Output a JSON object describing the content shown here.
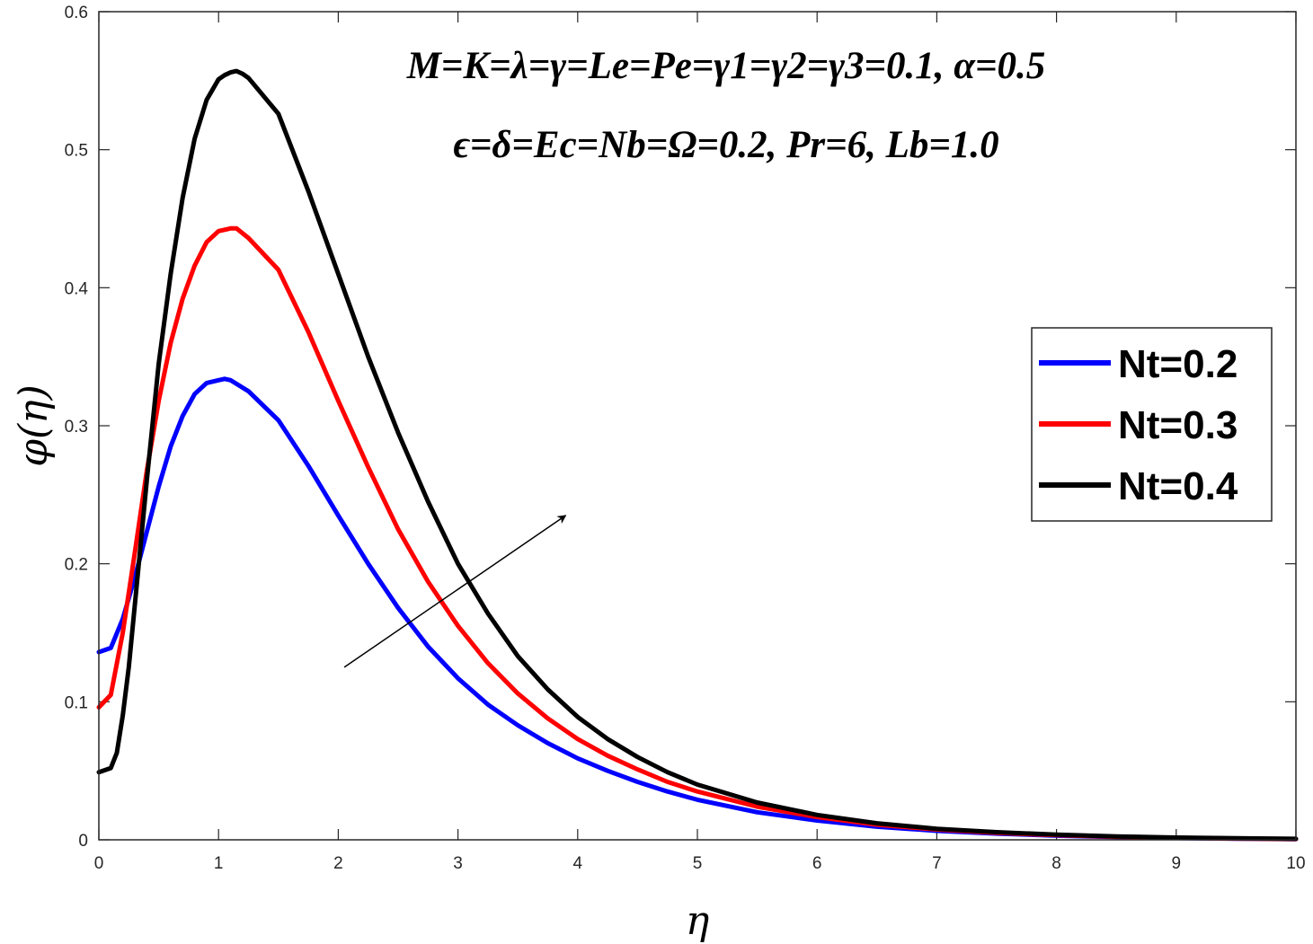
{
  "chart_data": {
    "type": "line",
    "xlabel": "η",
    "ylabel": "φ(η)",
    "xlim": [
      0,
      10
    ],
    "ylim": [
      0,
      0.6
    ],
    "xticks": [
      0,
      1,
      2,
      3,
      4,
      5,
      6,
      7,
      8,
      9,
      10
    ],
    "yticks": [
      0,
      0.1,
      0.2,
      0.3,
      0.4,
      0.5,
      0.6
    ],
    "xtick_labels": [
      "0",
      "1",
      "2",
      "3",
      "4",
      "5",
      "6",
      "7",
      "8",
      "9",
      "10"
    ],
    "ytick_labels": [
      "0",
      "0.1",
      "0.2",
      "0.3",
      "0.4",
      "0.5",
      "0.6"
    ],
    "annotation_line1": "M=K=λ=γ=Le=Pe=γ1=γ2=γ3=0.1, α=0.5",
    "annotation_line2": "ϵ=δ=Ec=Nb=Ω=0.2, Pr=6, Lb=1.0",
    "arrow": {
      "from": [
        2.05,
        0.125
      ],
      "to": [
        3.9,
        0.235
      ],
      "meaning": "increasing Nt"
    },
    "legend_position": "right",
    "series": [
      {
        "name": "Nt=0.2",
        "color": "#0000ff",
        "x": [
          0,
          0.1,
          0.2,
          0.3,
          0.4,
          0.5,
          0.6,
          0.7,
          0.8,
          0.9,
          1.0,
          1.05,
          1.1,
          1.25,
          1.5,
          1.75,
          2.0,
          2.25,
          2.5,
          2.75,
          3.0,
          3.25,
          3.5,
          3.75,
          4.0,
          4.25,
          4.5,
          4.75,
          5.0,
          5.5,
          6.0,
          6.5,
          7.0,
          7.5,
          8.0,
          8.5,
          9.0,
          9.5,
          10.0
        ],
        "values": [
          0.136,
          0.139,
          0.16,
          0.19,
          0.223,
          0.256,
          0.285,
          0.307,
          0.323,
          0.331,
          0.333,
          0.334,
          0.333,
          0.325,
          0.304,
          0.271,
          0.235,
          0.2,
          0.168,
          0.14,
          0.117,
          0.098,
          0.083,
          0.07,
          0.059,
          0.05,
          0.042,
          0.035,
          0.029,
          0.02,
          0.014,
          0.0095,
          0.0065,
          0.0045,
          0.003,
          0.002,
          0.0013,
          0.0008,
          0.0005
        ]
      },
      {
        "name": "Nt=0.3",
        "color": "#ff0000",
        "x": [
          0,
          0.1,
          0.2,
          0.3,
          0.4,
          0.5,
          0.6,
          0.7,
          0.8,
          0.9,
          1.0,
          1.1,
          1.15,
          1.25,
          1.5,
          1.75,
          2.0,
          2.25,
          2.5,
          2.75,
          3.0,
          3.25,
          3.5,
          3.75,
          4.0,
          4.25,
          4.5,
          4.75,
          5.0,
          5.5,
          6.0,
          6.5,
          7.0,
          7.5,
          8.0,
          8.5,
          9.0,
          9.5,
          10.0
        ],
        "values": [
          0.096,
          0.105,
          0.15,
          0.208,
          0.267,
          0.318,
          0.36,
          0.392,
          0.416,
          0.433,
          0.441,
          0.443,
          0.443,
          0.436,
          0.413,
          0.368,
          0.318,
          0.27,
          0.225,
          0.187,
          0.155,
          0.128,
          0.106,
          0.088,
          0.073,
          0.061,
          0.051,
          0.042,
          0.035,
          0.024,
          0.0165,
          0.011,
          0.0075,
          0.005,
          0.0034,
          0.0022,
          0.0014,
          0.0009,
          0.0006
        ]
      },
      {
        "name": "Nt=0.4",
        "color": "#000000",
        "x": [
          0,
          0.1,
          0.15,
          0.2,
          0.25,
          0.3,
          0.4,
          0.5,
          0.6,
          0.7,
          0.8,
          0.9,
          1.0,
          1.05,
          1.1,
          1.15,
          1.2,
          1.25,
          1.5,
          1.75,
          2.0,
          2.25,
          2.5,
          2.75,
          3.0,
          3.25,
          3.5,
          3.75,
          4.0,
          4.25,
          4.5,
          4.75,
          5.0,
          5.5,
          6.0,
          6.5,
          7.0,
          7.5,
          8.0,
          8.5,
          9.0,
          9.5,
          10.0
        ],
        "values": [
          0.049,
          0.052,
          0.063,
          0.09,
          0.125,
          0.17,
          0.26,
          0.345,
          0.41,
          0.465,
          0.508,
          0.536,
          0.551,
          0.554,
          0.556,
          0.557,
          0.555,
          0.552,
          0.526,
          0.47,
          0.41,
          0.35,
          0.295,
          0.245,
          0.2,
          0.164,
          0.133,
          0.109,
          0.089,
          0.073,
          0.06,
          0.049,
          0.04,
          0.027,
          0.018,
          0.012,
          0.008,
          0.0055,
          0.0037,
          0.0025,
          0.0016,
          0.0011,
          0.0007
        ]
      }
    ]
  }
}
